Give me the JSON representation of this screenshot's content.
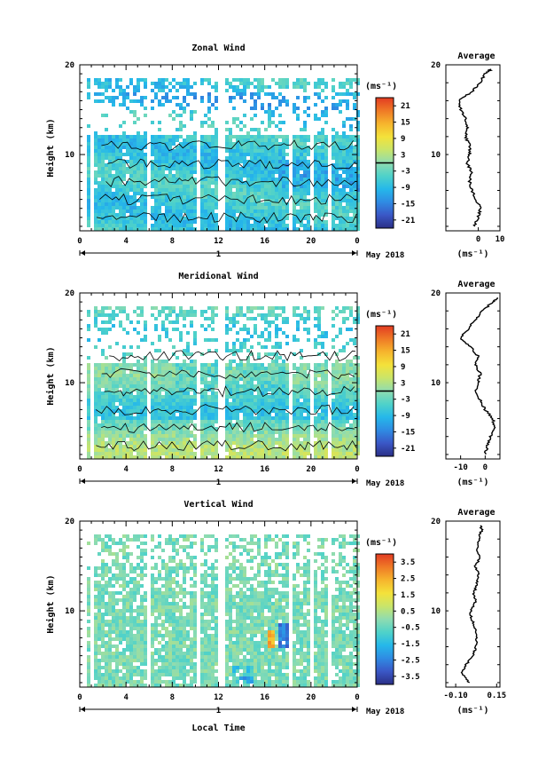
{
  "figure": {
    "date_label": "May 2018",
    "xlabel": "Local Time",
    "x_ticks": [
      "0",
      "4",
      "8",
      "12",
      "16",
      "20",
      "0"
    ],
    "day_label": "1",
    "ylabel": "Height (km)",
    "y_ticks": [
      "10",
      "20"
    ],
    "unit_label": "(ms⁻¹)",
    "average_title": "Average",
    "colors": {
      "colormap": [
        "#2b2f86",
        "#3a57c6",
        "#2f8be3",
        "#25b8ea",
        "#4fd2c9",
        "#8fdcb0",
        "#c9e56a",
        "#f4e23a",
        "#f6b52d",
        "#ef7a26",
        "#e23b22"
      ],
      "background": "#ffffff",
      "line": "#000000"
    }
  },
  "panels": [
    {
      "title": "Zonal Wind",
      "colorbar_ticks": [
        "21",
        "15",
        "9",
        "3",
        "-3",
        "-9",
        "-15",
        "-21"
      ],
      "avg_ticks": [
        "0",
        "10"
      ],
      "avg_unit": "(ms⁻¹)"
    },
    {
      "title": "Meridional Wind",
      "colorbar_ticks": [
        "21",
        "15",
        "9",
        "3",
        "-3",
        "-9",
        "-15",
        "-21"
      ],
      "avg_ticks": [
        "-10",
        "0"
      ],
      "avg_unit": "(ms⁻¹)"
    },
    {
      "title": "Vertical Wind",
      "colorbar_ticks": [
        "3.5",
        "2.5",
        "1.5",
        "0.5",
        "-0.5",
        "-1.5",
        "-2.5",
        "-3.5"
      ],
      "avg_ticks": [
        "-0.10",
        "0.15"
      ],
      "avg_unit": "(ms⁻¹)"
    }
  ],
  "chart_data": [
    {
      "type": "heatmap",
      "title": "Zonal Wind",
      "xlabel": "Local Time",
      "ylabel": "Height (km)",
      "xlim": [
        0,
        24
      ],
      "ylim": [
        1.5,
        20
      ],
      "colorbar_range": [
        -24,
        24
      ],
      "colorbar_ticks": [
        21,
        15,
        9,
        3,
        -3,
        -9,
        -15,
        -21
      ],
      "profile_heights": [
        2,
        3,
        4,
        5,
        6,
        7,
        8,
        9,
        10,
        11,
        12,
        13,
        14,
        15,
        16,
        17,
        18,
        19,
        19.5
      ],
      "mean_profile": [
        -2,
        0,
        1,
        -1,
        -3,
        -4,
        -3,
        -5,
        -4,
        -4,
        -6,
        -5,
        -6,
        -8,
        -9,
        -3,
        1,
        3,
        6
      ]
    },
    {
      "type": "heatmap",
      "title": "Meridional Wind",
      "xlabel": "Local Time",
      "ylabel": "Height (km)",
      "xlim": [
        0,
        24
      ],
      "ylim": [
        1.5,
        20
      ],
      "colorbar_range": [
        -24,
        24
      ],
      "colorbar_ticks": [
        21,
        15,
        9,
        3,
        -3,
        -9,
        -15,
        -21
      ],
      "profile_heights": [
        2,
        3,
        4,
        5,
        6,
        7,
        8,
        9,
        10,
        11,
        12,
        13,
        14,
        15,
        16,
        17,
        18,
        19,
        19.5
      ],
      "mean_profile": [
        0,
        1,
        2,
        4,
        3,
        0,
        -2,
        -4,
        -3,
        -2,
        -4,
        -3,
        -6,
        -10,
        -7,
        -4,
        -1,
        3,
        5
      ]
    },
    {
      "type": "heatmap",
      "title": "Vertical Wind",
      "xlabel": "Local Time",
      "ylabel": "Height (km)",
      "xlim": [
        0,
        24
      ],
      "ylim": [
        1.5,
        20
      ],
      "colorbar_range": [
        -4,
        4
      ],
      "colorbar_ticks": [
        3.5,
        2.5,
        1.5,
        0.5,
        -0.5,
        -1.5,
        -2.5,
        -3.5
      ],
      "profile_heights": [
        2,
        3,
        4,
        5,
        6,
        7,
        8,
        9,
        10,
        11,
        12,
        13,
        14,
        15,
        16,
        17,
        18,
        19,
        19.5
      ],
      "mean_profile": [
        -0.02,
        -0.06,
        -0.04,
        0.01,
        0.02,
        0.03,
        0.02,
        0.0,
        -0.01,
        0.02,
        0.01,
        0.03,
        0.04,
        0.02,
        0.05,
        0.03,
        0.04,
        0.06,
        0.05
      ]
    }
  ]
}
